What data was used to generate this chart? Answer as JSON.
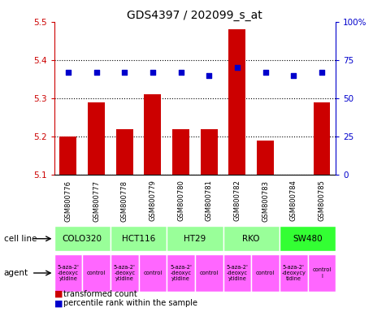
{
  "title": "GDS4397 / 202099_s_at",
  "samples": [
    "GSM800776",
    "GSM800777",
    "GSM800778",
    "GSM800779",
    "GSM800780",
    "GSM800781",
    "GSM800782",
    "GSM800783",
    "GSM800784",
    "GSM800785"
  ],
  "bar_values": [
    5.2,
    5.29,
    5.22,
    5.31,
    5.22,
    5.22,
    5.48,
    5.19,
    5.1,
    5.29
  ],
  "percentile_values": [
    67,
    67,
    67,
    67,
    67,
    65,
    70,
    67,
    65,
    67
  ],
  "ylim_left": [
    5.1,
    5.5
  ],
  "ylim_right": [
    0,
    100
  ],
  "yticks_left": [
    5.1,
    5.2,
    5.3,
    5.4,
    5.5
  ],
  "yticks_right": [
    0,
    25,
    50,
    75,
    100
  ],
  "bar_color": "#cc0000",
  "scatter_color": "#0000cc",
  "cell_lines": [
    {
      "name": "COLO320",
      "start": 0,
      "end": 2,
      "color": "#99ff99"
    },
    {
      "name": "HCT116",
      "start": 2,
      "end": 4,
      "color": "#99ff99"
    },
    {
      "name": "HT29",
      "start": 4,
      "end": 6,
      "color": "#99ff99"
    },
    {
      "name": "RKO",
      "start": 6,
      "end": 8,
      "color": "#99ff99"
    },
    {
      "name": "SW480",
      "start": 8,
      "end": 10,
      "color": "#33ff33"
    }
  ],
  "agents": [
    {
      "name": "5-aza-2'\n-deoxyc\nytidine",
      "start": 0,
      "end": 1,
      "color": "#ff66ff"
    },
    {
      "name": "control",
      "start": 1,
      "end": 2,
      "color": "#ff66ff"
    },
    {
      "name": "5-aza-2'\n-deoxyc\nytidine",
      "start": 2,
      "end": 3,
      "color": "#ff66ff"
    },
    {
      "name": "control",
      "start": 3,
      "end": 4,
      "color": "#ff66ff"
    },
    {
      "name": "5-aza-2'\n-deoxyc\nytidine",
      "start": 4,
      "end": 5,
      "color": "#ff66ff"
    },
    {
      "name": "control",
      "start": 5,
      "end": 6,
      "color": "#ff66ff"
    },
    {
      "name": "5-aza-2'\n-deoxyc\nytidine",
      "start": 6,
      "end": 7,
      "color": "#ff66ff"
    },
    {
      "name": "control",
      "start": 7,
      "end": 8,
      "color": "#ff66ff"
    },
    {
      "name": "5-aza-2'\n-deoxycy\ntidine",
      "start": 8,
      "end": 9,
      "color": "#ff66ff"
    },
    {
      "name": "control\nl",
      "start": 9,
      "end": 10,
      "color": "#ff66ff"
    }
  ],
  "sample_bg_color": "#c8c8c8",
  "background_color": "#ffffff",
  "title_fontsize": 10,
  "tick_fontsize": 7.5,
  "label_fontsize": 7.5
}
